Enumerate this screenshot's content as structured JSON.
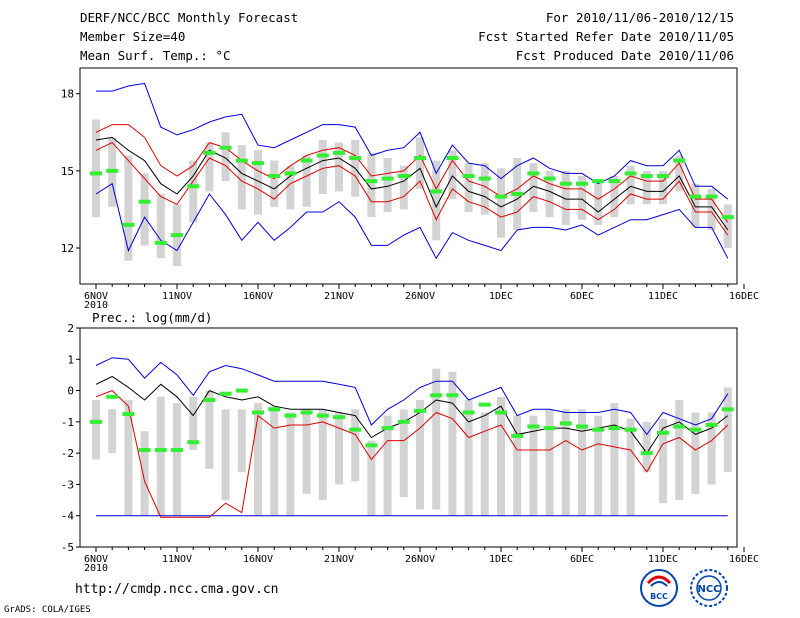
{
  "header": {
    "title": "DERF/NCC/BCC Monthly Forecast",
    "member_size": "Member Size=40",
    "variable": "Mean Surf. Temp.: °C",
    "period": "For 2010/11/06-2010/12/15",
    "started": "Fcst Started Refer Date 2010/11/05",
    "produced": "Fcst Produced Date 2010/11/06"
  },
  "footer": {
    "url": "http://cmdp.ncc.cma.gov.cn",
    "credit": "GrADS: COLA/IGES"
  },
  "logos": {
    "bcc": "BCC",
    "ncc": "NCC"
  },
  "colors": {
    "max": "#0000dd",
    "quartile": "#dd0000",
    "median": "#000000",
    "box": "#d3d3d3",
    "mark": "#33ee33"
  },
  "chart_data": [
    {
      "type": "box-line",
      "title": "Mean Surf. Temp.: °C",
      "ylim": [
        10.6,
        19.0
      ],
      "yticks": [
        "12",
        "15",
        "18"
      ],
      "ytick_values": [
        12,
        15,
        18
      ],
      "xticks": [
        "6NOV",
        "11NOV",
        "16NOV",
        "21NOV",
        "26NOV",
        "1DEC",
        "6DEC",
        "11DEC",
        "16DEC"
      ],
      "xtick_days": [
        0,
        5,
        10,
        15,
        20,
        25,
        30,
        35,
        40
      ],
      "xsub": "2010",
      "series": [
        {
          "name": "max",
          "values": [
            18.1,
            18.1,
            18.3,
            18.4,
            16.7,
            16.4,
            16.6,
            16.9,
            17.1,
            17.2,
            16.0,
            15.9,
            16.2,
            16.5,
            16.8,
            16.8,
            16.7,
            15.6,
            15.8,
            15.9,
            16.5,
            14.9,
            16.0,
            15.3,
            15.2,
            14.7,
            15.2,
            15.5,
            15.1,
            14.9,
            14.9,
            14.5,
            14.8,
            15.4,
            15.2,
            15.2,
            15.8,
            14.4,
            14.4,
            13.9
          ]
        },
        {
          "name": "q3",
          "values": [
            16.5,
            16.8,
            16.8,
            16.3,
            15.2,
            14.8,
            15.2,
            16.1,
            15.9,
            15.4,
            15.0,
            14.7,
            15.2,
            15.6,
            15.8,
            15.9,
            15.6,
            14.8,
            14.9,
            15.0,
            15.6,
            14.3,
            15.4,
            14.6,
            14.4,
            14.0,
            14.3,
            14.8,
            14.5,
            14.3,
            14.3,
            13.9,
            14.3,
            14.8,
            14.6,
            14.6,
            15.3,
            13.9,
            13.9,
            13.0
          ]
        },
        {
          "name": "median",
          "values": [
            16.2,
            16.3,
            15.8,
            15.4,
            14.5,
            14.1,
            14.8,
            15.8,
            15.5,
            14.9,
            14.6,
            14.3,
            14.8,
            15.1,
            15.4,
            15.5,
            15.1,
            14.3,
            14.4,
            14.6,
            15.1,
            13.6,
            14.8,
            14.2,
            14.0,
            13.6,
            13.9,
            14.4,
            14.2,
            13.9,
            13.9,
            13.4,
            13.9,
            14.4,
            14.2,
            14.2,
            14.8,
            13.6,
            13.6,
            12.7
          ]
        },
        {
          "name": "q1",
          "values": [
            15.8,
            16.1,
            15.4,
            14.7,
            14.0,
            13.7,
            14.6,
            15.5,
            15.2,
            14.6,
            14.3,
            13.9,
            14.5,
            14.8,
            15.1,
            15.2,
            14.8,
            13.8,
            13.8,
            14.0,
            14.6,
            13.1,
            14.3,
            13.8,
            13.6,
            13.2,
            13.4,
            14.0,
            13.8,
            13.5,
            13.5,
            13.1,
            13.5,
            14.1,
            13.9,
            13.9,
            14.6,
            13.4,
            13.4,
            12.5
          ]
        },
        {
          "name": "min",
          "values": [
            14.1,
            14.5,
            11.9,
            13.2,
            12.3,
            11.9,
            13.0,
            14.1,
            13.3,
            12.3,
            13.0,
            12.3,
            12.8,
            13.4,
            13.4,
            13.8,
            13.2,
            12.1,
            12.1,
            12.5,
            12.8,
            11.6,
            12.6,
            12.3,
            12.1,
            11.9,
            12.7,
            12.8,
            12.8,
            12.7,
            12.9,
            12.5,
            12.8,
            13.1,
            13.1,
            13.3,
            13.5,
            12.8,
            12.8,
            11.6
          ]
        },
        {
          "name": "box_top",
          "values": [
            17.0,
            16.3,
            15.6,
            14.9,
            14.1,
            13.7,
            15.4,
            16.1,
            16.5,
            16.0,
            15.8,
            15.4,
            15.2,
            15.6,
            16.2,
            16.1,
            16.2,
            15.7,
            15.5,
            15.2,
            16.3,
            15.4,
            15.8,
            15.3,
            15.3,
            15.1,
            15.5,
            15.3,
            15.0,
            15.0,
            14.8,
            14.6,
            14.8,
            15.2,
            15.0,
            15.0,
            15.6,
            14.5,
            14.3,
            13.7
          ]
        },
        {
          "name": "box_bottom",
          "values": [
            13.2,
            13.6,
            11.5,
            12.1,
            11.6,
            11.3,
            13.0,
            14.2,
            14.6,
            13.5,
            13.3,
            13.6,
            13.5,
            13.6,
            14.1,
            14.2,
            14.0,
            13.2,
            13.4,
            13.5,
            14.3,
            12.3,
            13.9,
            13.4,
            13.3,
            12.4,
            12.7,
            13.4,
            13.2,
            12.9,
            13.1,
            12.9,
            13.2,
            13.7,
            13.7,
            13.7,
            14.2,
            12.8,
            12.7,
            12.0
          ]
        },
        {
          "name": "ensemble_mark",
          "values": [
            14.9,
            15.0,
            12.9,
            13.8,
            12.2,
            12.5,
            14.4,
            15.7,
            15.9,
            15.4,
            15.3,
            14.8,
            14.9,
            15.4,
            15.6,
            15.7,
            15.5,
            14.6,
            14.7,
            14.8,
            15.5,
            14.2,
            15.5,
            14.8,
            14.7,
            14.0,
            14.1,
            14.9,
            14.7,
            14.5,
            14.5,
            14.6,
            14.6,
            14.9,
            14.8,
            14.8,
            15.4,
            14.0,
            14.0,
            13.2
          ]
        }
      ]
    },
    {
      "type": "box-line",
      "title": "Prec.: log(mm/d)",
      "ylim": [
        -5,
        2
      ],
      "yticks": [
        "-5",
        "-4",
        "-3",
        "-2",
        "-1",
        "0",
        "1",
        "2"
      ],
      "ytick_values": [
        -5,
        -4,
        -3,
        -2,
        -1,
        0,
        1,
        2
      ],
      "xticks": [
        "6NOV",
        "11NOV",
        "16NOV",
        "21NOV",
        "26NOV",
        "1DEC",
        "6DEC",
        "11DEC",
        "16DEC"
      ],
      "xtick_days": [
        0,
        5,
        10,
        15,
        20,
        25,
        30,
        35,
        40
      ],
      "xsub": "2010",
      "series": [
        {
          "name": "max",
          "values": [
            0.8,
            1.05,
            1.0,
            0.4,
            0.9,
            0.5,
            -0.15,
            0.6,
            0.8,
            0.7,
            0.5,
            0.3,
            0.3,
            0.3,
            0.3,
            0.2,
            0.1,
            -1.1,
            -0.6,
            -0.3,
            0.1,
            0.3,
            0.3,
            -0.3,
            -0.1,
            0.1,
            -0.8,
            -0.6,
            -0.6,
            -0.7,
            -0.7,
            -0.7,
            -0.6,
            -0.7,
            -1.4,
            -0.7,
            -0.9,
            -1.1,
            -0.9,
            -0.1
          ]
        },
        {
          "name": "median",
          "values": [
            0.2,
            0.45,
            0.1,
            -0.3,
            0.2,
            -0.2,
            -0.8,
            0.0,
            -0.2,
            -0.3,
            -0.2,
            -0.5,
            -0.6,
            -0.6,
            -0.6,
            -0.7,
            -0.8,
            -1.5,
            -1.2,
            -1.0,
            -0.7,
            -0.3,
            -0.4,
            -1.0,
            -0.8,
            -0.5,
            -1.4,
            -1.3,
            -1.2,
            -1.2,
            -1.3,
            -1.2,
            -1.1,
            -1.3,
            -2.0,
            -1.2,
            -1.0,
            -1.4,
            -1.2,
            -0.8
          ]
        },
        {
          "name": "q1",
          "values": [
            -0.2,
            0.0,
            -0.5,
            -2.9,
            -4.05,
            -4.05,
            -4.05,
            -4.05,
            -3.6,
            -3.9,
            -0.8,
            -1.2,
            -1.1,
            -1.1,
            -1.0,
            -1.2,
            -1.4,
            -2.2,
            -1.6,
            -1.6,
            -1.2,
            -0.7,
            -0.9,
            -1.5,
            -1.3,
            -1.1,
            -1.9,
            -1.9,
            -1.9,
            -1.6,
            -1.9,
            -1.7,
            -1.8,
            -1.9,
            -2.6,
            -1.7,
            -1.5,
            -1.9,
            -1.6,
            -1.1
          ]
        },
        {
          "name": "min",
          "values": [
            -4.0,
            -4.0,
            -4.0,
            -4.0,
            -4.0,
            -4.0,
            -4.0,
            -4.0,
            -4.0,
            -4.0,
            -4.0,
            -4.0,
            -4.0,
            -4.0,
            -4.0,
            -4.0,
            -4.0,
            -4.0,
            -4.0,
            -4.0,
            -4.0,
            -4.0,
            -4.0,
            -4.0,
            -4.0,
            -4.0,
            -4.0,
            -4.0,
            -4.0,
            -4.0,
            -4.0,
            -4.0,
            -4.0,
            -4.0,
            -4.0,
            -4.0,
            -4.0,
            -4.0,
            -4.0,
            -4.0
          ]
        },
        {
          "name": "box_top",
          "values": [
            -0.3,
            -0.6,
            -0.3,
            -1.3,
            -0.2,
            -0.4,
            -0.2,
            0.0,
            -0.6,
            -0.6,
            -0.4,
            -0.5,
            -0.7,
            -0.6,
            -0.6,
            -0.7,
            -0.6,
            -1.6,
            -0.8,
            -0.6,
            -0.3,
            0.7,
            0.6,
            -0.3,
            -0.7,
            -0.2,
            -0.8,
            -0.8,
            -0.6,
            -0.6,
            -0.6,
            -0.8,
            -0.4,
            -0.9,
            -1.0,
            -0.9,
            -0.3,
            -0.7,
            -0.7,
            0.1
          ]
        },
        {
          "name": "box_bottom",
          "values": [
            -2.2,
            -2.0,
            -4.0,
            -4.0,
            -4.0,
            -4.0,
            -1.9,
            -2.5,
            -3.5,
            -2.6,
            -4.0,
            -4.0,
            -4.0,
            -3.3,
            -3.5,
            -3.0,
            -2.9,
            -4.0,
            -4.0,
            -3.4,
            -3.8,
            -3.8,
            -4.0,
            -4.0,
            -4.0,
            -4.0,
            -4.0,
            -4.0,
            -4.0,
            -4.0,
            -4.0,
            -4.0,
            -4.0,
            -4.0,
            -2.6,
            -3.6,
            -3.5,
            -3.3,
            -3.0,
            -2.6
          ]
        },
        {
          "name": "ensemble_mark",
          "values": [
            -1.0,
            -0.2,
            -0.75,
            -1.9,
            -1.9,
            -1.9,
            -1.65,
            -0.3,
            -0.1,
            0.0,
            -0.7,
            -0.6,
            -0.8,
            -0.7,
            -0.8,
            -0.85,
            -1.25,
            -1.75,
            -1.2,
            -1.0,
            -0.65,
            -0.15,
            -0.15,
            -0.7,
            -0.45,
            -0.7,
            -1.45,
            -1.15,
            -1.2,
            -1.05,
            -1.15,
            -1.25,
            -1.2,
            -1.25,
            -2.0,
            -1.35,
            -1.15,
            -1.25,
            -1.1,
            -0.6
          ]
        }
      ]
    }
  ]
}
